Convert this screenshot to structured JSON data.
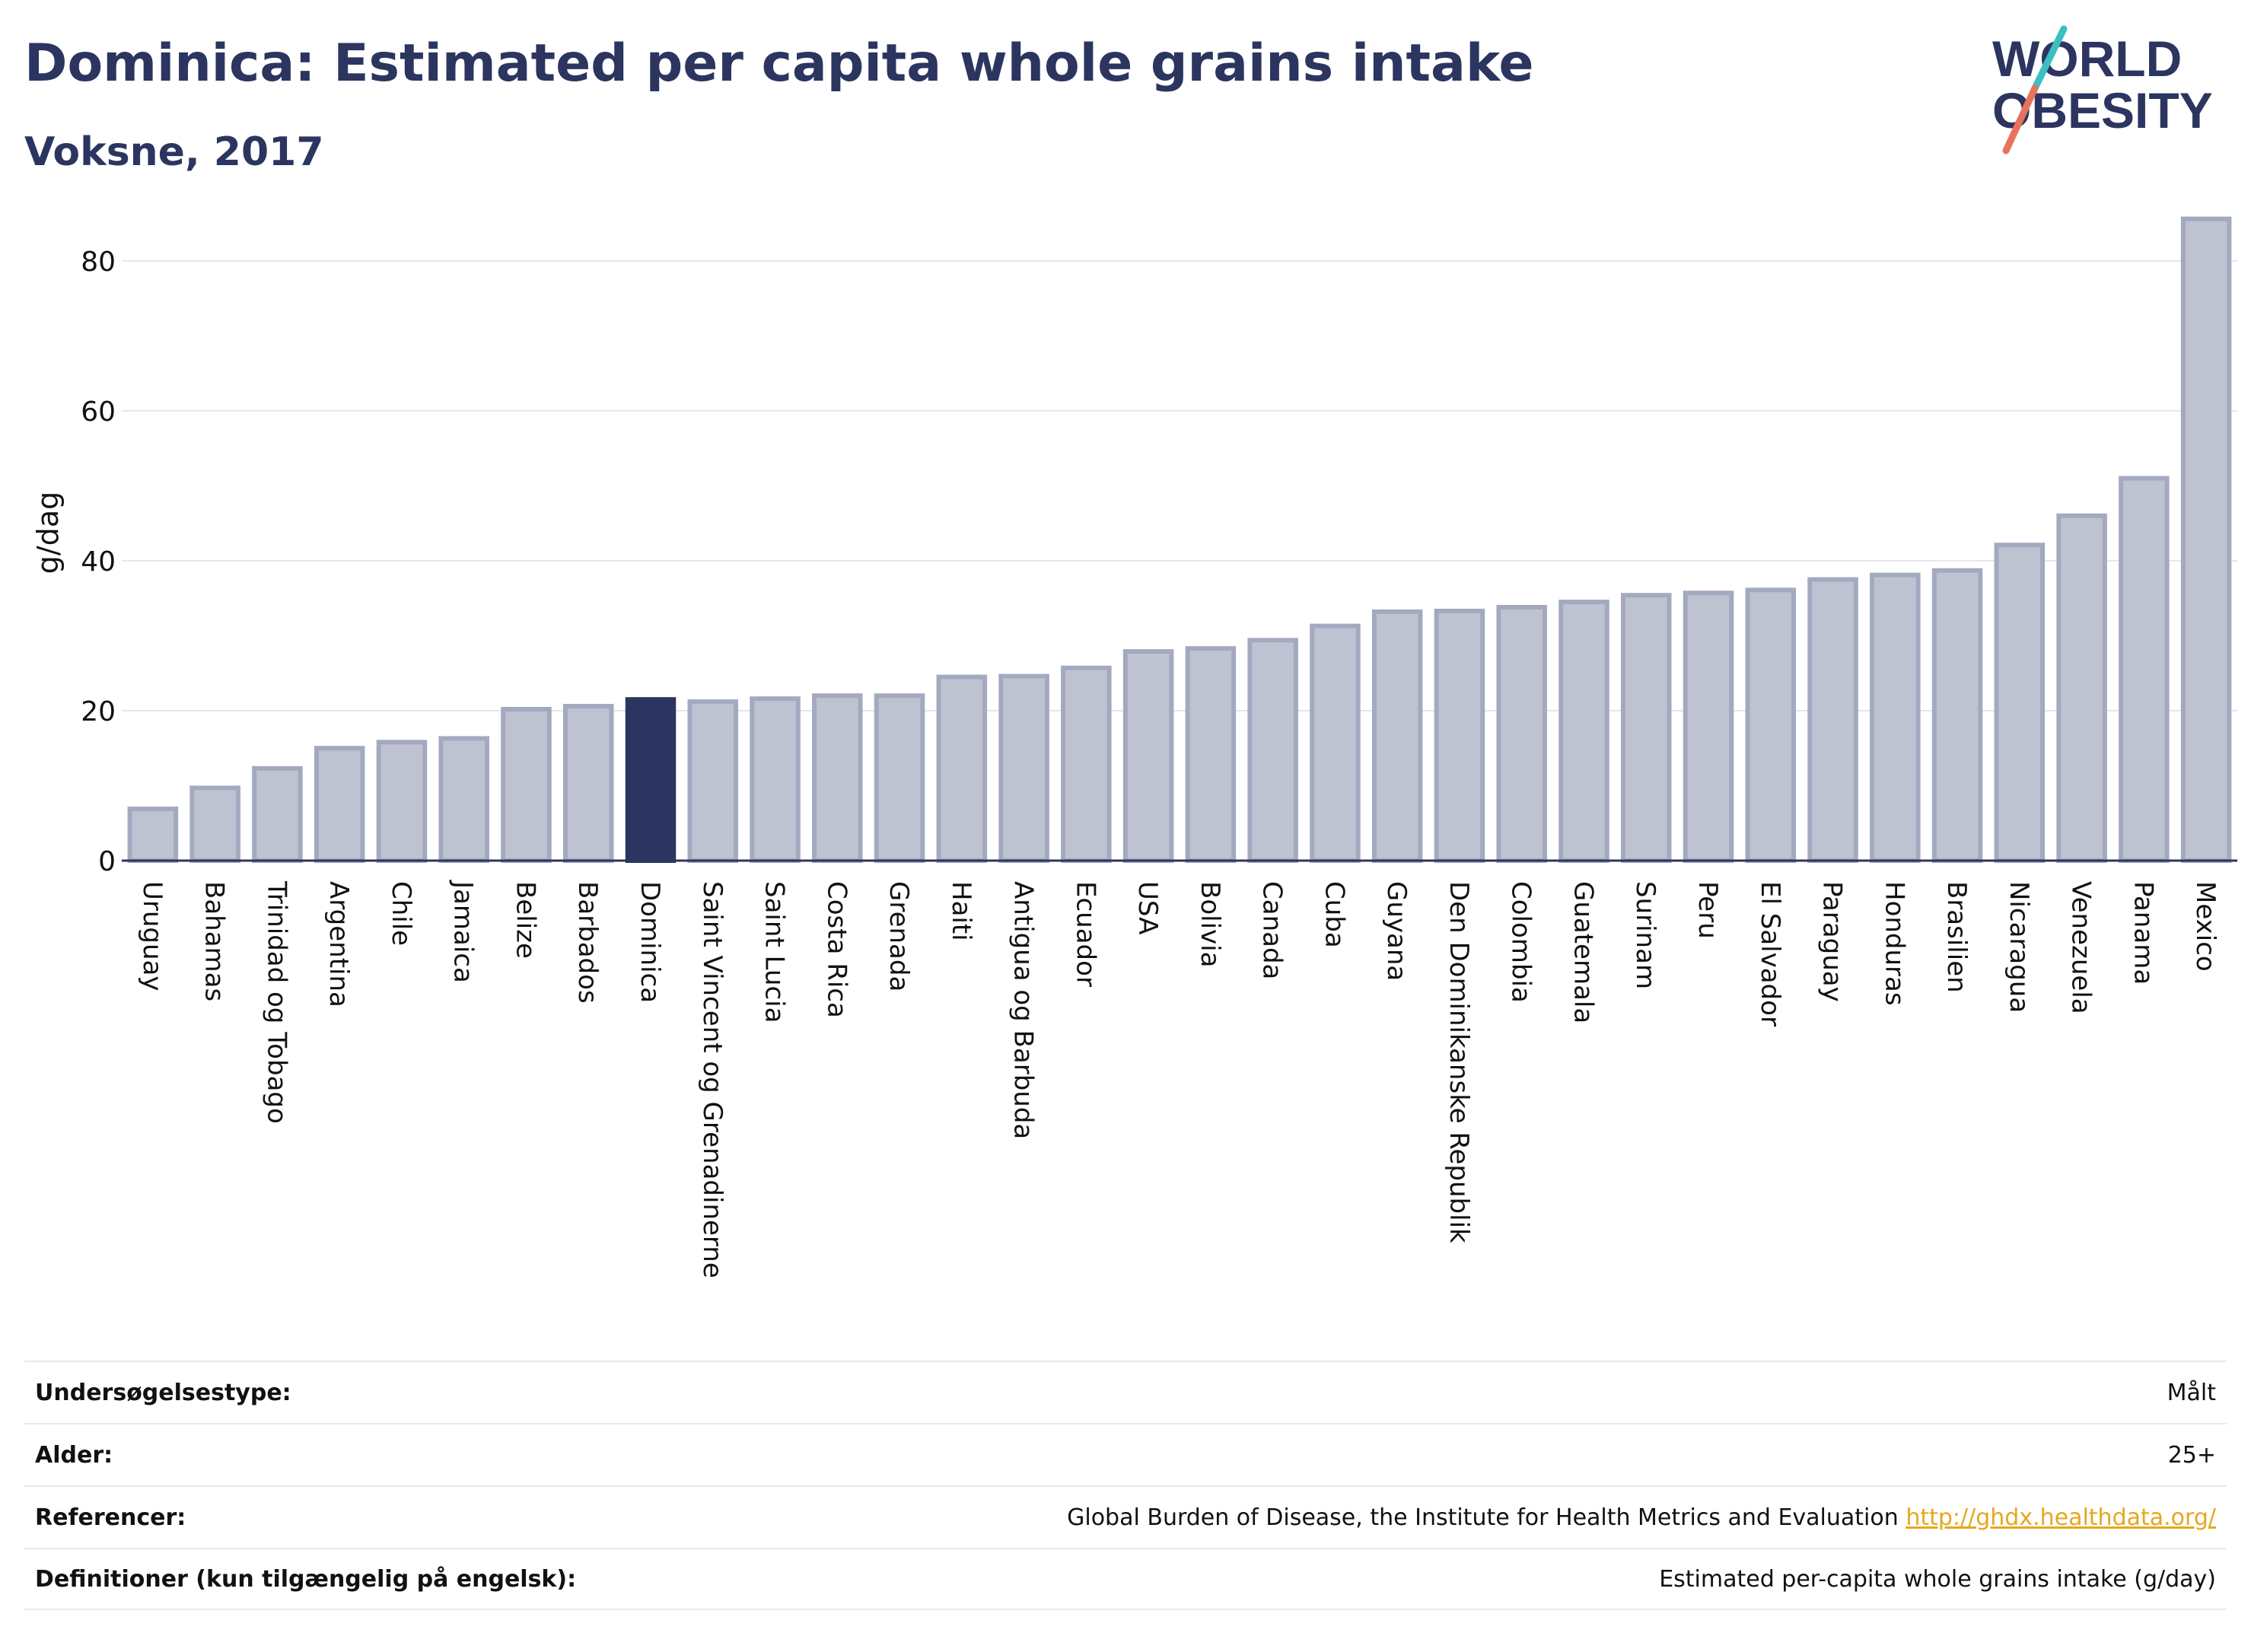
{
  "header": {
    "title": "Dominica: Estimated per capita whole grains intake",
    "subtitle": "Voksne, 2017"
  },
  "logo": {
    "line1": "WORLD",
    "line2": "OBESITY",
    "colors": {
      "text": "#2b355f",
      "slash_top": "#3bbfc1",
      "slash_bottom": "#e8735a"
    }
  },
  "chart_data": {
    "type": "bar",
    "ylabel": "g/dag",
    "ylim": [
      0,
      88
    ],
    "yticks": [
      0,
      20,
      40,
      60,
      80
    ],
    "grid": true,
    "highlight": "Dominica",
    "colors": {
      "bar": "#bfc3d1",
      "bar_edge": "#a3a9bf",
      "highlight": "#2b355f"
    },
    "categories": [
      "Uruguay",
      "Bahamas",
      "Trinidad og Tobago",
      "Argentina",
      "Chile",
      "Jamaica",
      "Belize",
      "Barbados",
      "Dominica",
      "Saint Vincent og Grenadinerne",
      "Saint Lucia",
      "Costa Rica",
      "Grenada",
      "Haiti",
      "Antigua og Barbuda",
      "Ecuador",
      "USA",
      "Bolivia",
      "Canada",
      "Cuba",
      "Guyana",
      "Den Dominikanske Republik",
      "Colombia",
      "Guatemala",
      "Surinam",
      "Peru",
      "El Salvador",
      "Paraguay",
      "Honduras",
      "Brasilien",
      "Nicaragua",
      "Venezuela",
      "Panama",
      "Mexico"
    ],
    "values": [
      6.9,
      9.7,
      12.3,
      15.0,
      15.8,
      16.3,
      20.2,
      20.6,
      21.5,
      21.2,
      21.6,
      22.0,
      22.0,
      24.5,
      24.6,
      25.7,
      27.9,
      28.3,
      29.4,
      31.3,
      33.2,
      33.3,
      33.8,
      34.5,
      35.4,
      35.7,
      36.1,
      37.5,
      38.1,
      38.7,
      42.1,
      46.0,
      51.0,
      85.6
    ]
  },
  "info_table": [
    {
      "label": "Undersøgelsestype:",
      "value": "Målt"
    },
    {
      "label": "Alder:",
      "value": "25+"
    },
    {
      "label": "Referencer:",
      "value": "Global Burden of Disease, the Institute for Health Metrics and Evaluation",
      "link": "http://ghdx.healthdata.org/"
    },
    {
      "label": "Definitioner (kun tilgængelig på engelsk):",
      "value": "Estimated per-capita whole grains intake (g/day)"
    }
  ]
}
